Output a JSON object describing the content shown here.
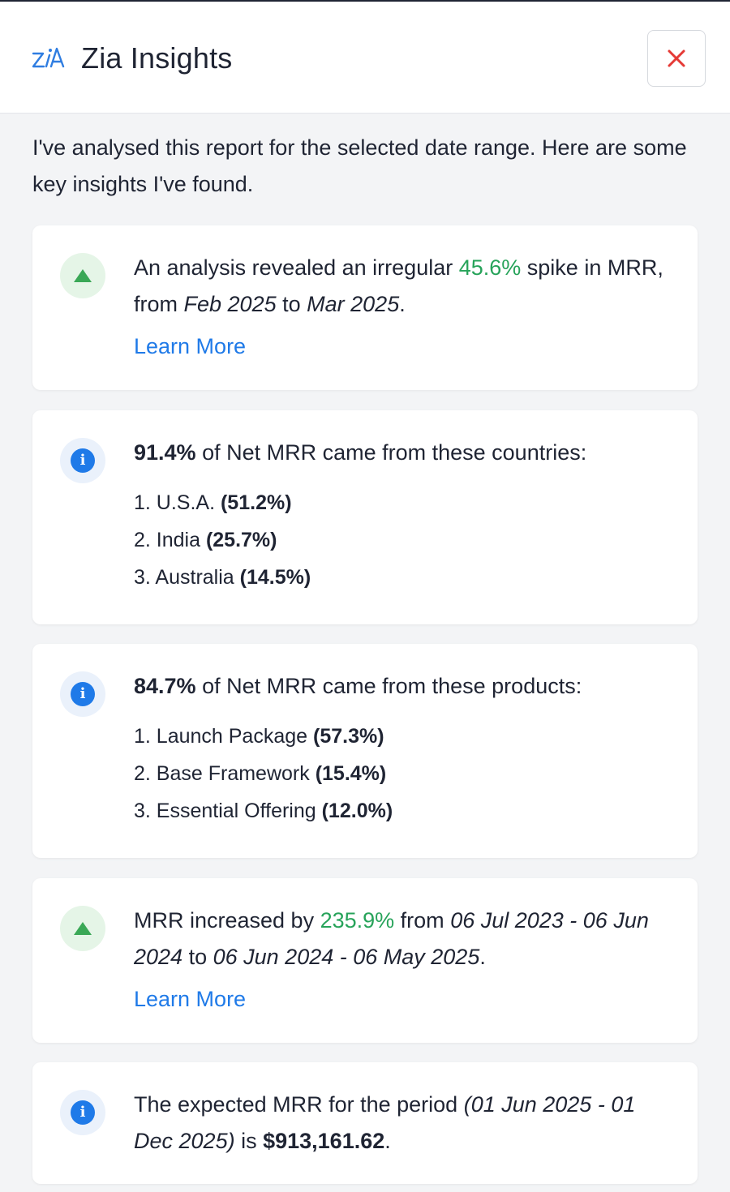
{
  "header": {
    "title": "Zia Insights",
    "close_label": "Close"
  },
  "intro": "I've analysed this report for the selected date range. Here are some key insights I've found.",
  "colors": {
    "accent_green": "#27a35a",
    "link_blue": "#1f7ae8",
    "close_red": "#e53935",
    "up_badge_bg": "#e5f5e7",
    "info_badge_bg": "#eaf1fb"
  },
  "cards": [
    {
      "icon": "triangle-up-icon",
      "t1": "An analysis revealed an irregular ",
      "pct": "45.6%",
      "t2": " spike in MRR, from ",
      "d1": "Feb 2025",
      "t3": " to ",
      "d2": "Mar 2025",
      "t4": ".",
      "link": "Learn More"
    },
    {
      "icon": "info-icon",
      "lead": "91.4%",
      "heading": " of Net MRR came from these countries:",
      "items": [
        {
          "label": "1. U.S.A. ",
          "pct": "(51.2%)"
        },
        {
          "label": "2. India ",
          "pct": "(25.7%)"
        },
        {
          "label": "3. Australia ",
          "pct": "(14.5%)"
        }
      ]
    },
    {
      "icon": "info-icon",
      "lead": "84.7%",
      "heading": " of Net MRR came from these products:",
      "items": [
        {
          "label": "1. Launch Package ",
          "pct": "(57.3%)"
        },
        {
          "label": "2. Base Framework ",
          "pct": "(15.4%)"
        },
        {
          "label": "3. Essential Offering ",
          "pct": "(12.0%)"
        }
      ]
    },
    {
      "icon": "triangle-up-icon",
      "t1": "MRR increased by ",
      "pct": "235.9%",
      "t2": " from ",
      "d1": "06 Jul 2023 - 06 Jun 2024",
      "t3": " to ",
      "d2": "06 Jun 2024 - 06 May 2025",
      "t4": ".",
      "link": "Learn More"
    },
    {
      "icon": "info-icon",
      "t1": "The expected MRR for the period ",
      "period": "(01 Jun 2025 - 01 Dec 2025)",
      "t2": " is ",
      "amount": "$913,161.62",
      "t3": "."
    }
  ]
}
